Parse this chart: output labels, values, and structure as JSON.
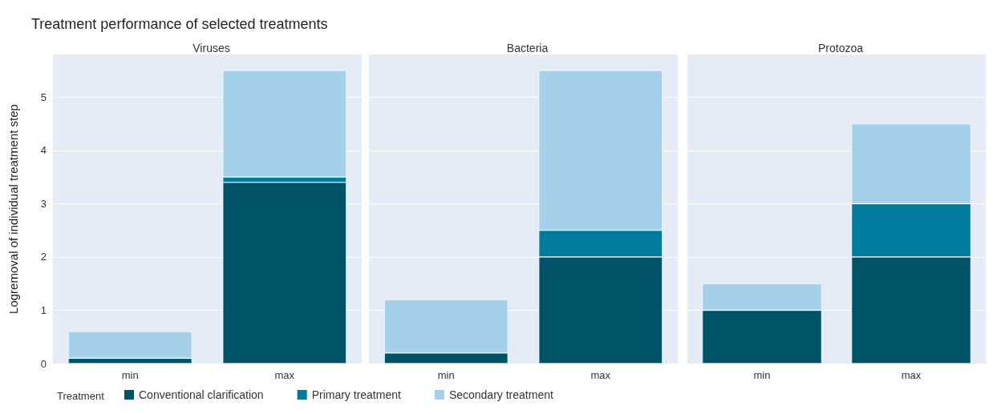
{
  "chart_data": [
    {
      "type": "bar",
      "title": "Treatment performance of selected treatments",
      "subtitle": "Viruses",
      "ylabel": "Logremoval of individual treatment step",
      "legend_title": "Treatment",
      "legend": "bottom",
      "stacked": true,
      "grid": "y",
      "categories": [
        "min",
        "max"
      ],
      "ylim": [
        0,
        5.8
      ],
      "yticks": [
        0,
        1,
        2,
        3,
        4,
        5
      ],
      "series": [
        {
          "name": "Conventional clarification",
          "color": "#005267",
          "values": [
            0.1,
            3.4
          ]
        },
        {
          "name": "Primary treatment",
          "color": "#007b9c",
          "values": [
            0,
            0.1
          ]
        },
        {
          "name": "Secondary treatment",
          "color": "#a4d0ea",
          "values": [
            0.5,
            2.0
          ]
        }
      ]
    },
    {
      "type": "bar",
      "subtitle": "Bacteria",
      "stacked": true,
      "grid": "y",
      "categories": [
        "min",
        "max"
      ],
      "ylim": [
        0,
        5.8
      ],
      "yticks": [
        0,
        1,
        2,
        3,
        4,
        5
      ],
      "tick_labels": "x",
      "series": [
        {
          "color": "#005267",
          "values": [
            0.2,
            2.0
          ]
        },
        {
          "color": "#007b9c",
          "values": [
            0,
            0.5
          ]
        },
        {
          "color": "#a4d0ea",
          "values": [
            1.0,
            3.0
          ]
        }
      ]
    },
    {
      "type": "bar",
      "subtitle": "Protozoa",
      "stacked": true,
      "grid": "y",
      "categories": [
        "min",
        "max"
      ],
      "ylim": [
        0,
        5.8
      ],
      "yticks": [
        0,
        1,
        2,
        3,
        4,
        5
      ],
      "tick_labels": "x",
      "series": [
        {
          "color": "#005267",
          "values": [
            1.0,
            2.0
          ]
        },
        {
          "color": "#007b9c",
          "values": [
            0,
            1.0
          ]
        },
        {
          "color": "#a4d0ea",
          "values": [
            0.5,
            1.5
          ]
        }
      ]
    }
  ]
}
